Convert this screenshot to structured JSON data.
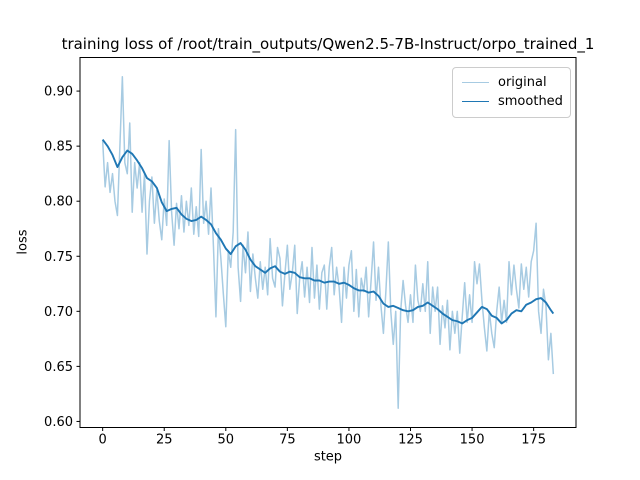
{
  "figure": {
    "background": "#ffffff"
  },
  "chart_data": {
    "type": "line",
    "title": "training loss of /root/train_outputs/Qwen2.5-7B-Instruct/orpo_trained_1",
    "xlabel": "step",
    "ylabel": "loss",
    "xlim": [
      -9.2,
      192.2
    ],
    "ylim": [
      0.5945,
      0.9305
    ],
    "x_ticks": [
      0,
      25,
      50,
      75,
      100,
      125,
      150,
      175
    ],
    "y_ticks": [
      0.6,
      0.65,
      0.7,
      0.75,
      0.8,
      0.85,
      0.9
    ],
    "grid": false,
    "legend_position": "upper right",
    "axis_color": "#000000",
    "series": [
      {
        "name": "original",
        "color": "#a7cbe2",
        "linewidth": 1.5,
        "x": [
          0,
          1,
          2,
          3,
          4,
          5,
          6,
          7,
          8,
          9,
          10,
          11,
          12,
          13,
          14,
          15,
          16,
          17,
          18,
          19,
          20,
          21,
          22,
          23,
          24,
          25,
          26,
          27,
          28,
          29,
          30,
          31,
          32,
          33,
          34,
          35,
          36,
          37,
          38,
          39,
          40,
          41,
          42,
          43,
          44,
          45,
          46,
          47,
          48,
          49,
          50,
          51,
          52,
          53,
          54,
          55,
          56,
          57,
          58,
          59,
          60,
          61,
          62,
          63,
          64,
          65,
          66,
          67,
          68,
          69,
          70,
          71,
          72,
          73,
          74,
          75,
          76,
          77,
          78,
          79,
          80,
          81,
          82,
          83,
          84,
          85,
          86,
          87,
          88,
          89,
          90,
          91,
          92,
          93,
          94,
          95,
          96,
          97,
          98,
          99,
          100,
          101,
          102,
          103,
          104,
          105,
          106,
          107,
          108,
          109,
          110,
          111,
          112,
          113,
          114,
          115,
          116,
          117,
          118,
          119,
          120,
          121,
          122,
          123,
          124,
          125,
          126,
          127,
          128,
          129,
          130,
          131,
          132,
          133,
          134,
          135,
          136,
          137,
          138,
          139,
          140,
          141,
          142,
          143,
          144,
          145,
          146,
          147,
          148,
          149,
          150,
          151,
          152,
          153,
          154,
          155,
          156,
          157,
          158,
          159,
          160,
          161,
          162,
          163,
          164,
          165,
          166,
          167,
          168,
          169,
          170,
          171,
          172,
          173,
          174,
          175,
          176,
          177,
          178,
          179,
          180,
          181,
          182,
          183
        ],
        "y": [
          0.855,
          0.813,
          0.835,
          0.808,
          0.825,
          0.8,
          0.787,
          0.85,
          0.913,
          0.835,
          0.825,
          0.871,
          0.79,
          0.835,
          0.812,
          0.835,
          0.79,
          0.825,
          0.752,
          0.8,
          0.822,
          0.78,
          0.81,
          0.782,
          0.765,
          0.802,
          0.778,
          0.855,
          0.79,
          0.76,
          0.798,
          0.775,
          0.805,
          0.772,
          0.8,
          0.778,
          0.812,
          0.77,
          0.795,
          0.768,
          0.847,
          0.78,
          0.8,
          0.77,
          0.812,
          0.758,
          0.695,
          0.775,
          0.748,
          0.716,
          0.686,
          0.755,
          0.74,
          0.772,
          0.865,
          0.74,
          0.709,
          0.76,
          0.735,
          0.772,
          0.718,
          0.752,
          0.73,
          0.712,
          0.745,
          0.72,
          0.74,
          0.715,
          0.766,
          0.73,
          0.722,
          0.758,
          0.748,
          0.705,
          0.734,
          0.76,
          0.72,
          0.735,
          0.76,
          0.698,
          0.73,
          0.745,
          0.713,
          0.74,
          0.708,
          0.758,
          0.712,
          0.742,
          0.702,
          0.735,
          0.742,
          0.702,
          0.74,
          0.758,
          0.715,
          0.74,
          0.722,
          0.69,
          0.74,
          0.712,
          0.742,
          0.755,
          0.7,
          0.738,
          0.695,
          0.73,
          0.718,
          0.74,
          0.695,
          0.728,
          0.763,
          0.71,
          0.74,
          0.705,
          0.68,
          0.718,
          0.763,
          0.7,
          0.67,
          0.7,
          0.612,
          0.7,
          0.728,
          0.705,
          0.69,
          0.715,
          0.69,
          0.742,
          0.71,
          0.7,
          0.725,
          0.7,
          0.745,
          0.68,
          0.722,
          0.7,
          0.722,
          0.67,
          0.705,
          0.685,
          0.71,
          0.665,
          0.7,
          0.68,
          0.7,
          0.662,
          0.695,
          0.726,
          0.69,
          0.715,
          0.69,
          0.745,
          0.725,
          0.743,
          0.71,
          0.685,
          0.664,
          0.7,
          0.68,
          0.667,
          0.7,
          0.722,
          0.69,
          0.71,
          0.69,
          0.745,
          0.715,
          0.742,
          0.72,
          0.703,
          0.743,
          0.72,
          0.74,
          0.713,
          0.745,
          0.755,
          0.78,
          0.7,
          0.68,
          0.72,
          0.705,
          0.656,
          0.68,
          0.643
        ]
      },
      {
        "name": "smoothed",
        "color": "#1f77b4",
        "linewidth": 1.9,
        "x": [
          0,
          2,
          4,
          6,
          8,
          10,
          12,
          14,
          16,
          18,
          20,
          22,
          24,
          26,
          28,
          30,
          32,
          34,
          36,
          38,
          40,
          42,
          44,
          46,
          48,
          50,
          52,
          54,
          56,
          58,
          60,
          62,
          64,
          66,
          68,
          70,
          72,
          74,
          76,
          78,
          80,
          82,
          84,
          86,
          88,
          90,
          92,
          94,
          96,
          98,
          100,
          102,
          104,
          106,
          108,
          110,
          112,
          114,
          116,
          118,
          120,
          122,
          124,
          126,
          128,
          130,
          132,
          134,
          136,
          138,
          140,
          142,
          144,
          146,
          148,
          150,
          152,
          154,
          156,
          158,
          160,
          162,
          164,
          166,
          168,
          170,
          172,
          174,
          176,
          178,
          180,
          182,
          183
        ],
        "y": [
          0.856,
          0.85,
          0.842,
          0.831,
          0.84,
          0.846,
          0.843,
          0.837,
          0.83,
          0.821,
          0.818,
          0.812,
          0.799,
          0.791,
          0.793,
          0.794,
          0.788,
          0.784,
          0.782,
          0.783,
          0.786,
          0.783,
          0.779,
          0.771,
          0.765,
          0.757,
          0.752,
          0.759,
          0.762,
          0.756,
          0.747,
          0.741,
          0.738,
          0.735,
          0.739,
          0.741,
          0.736,
          0.734,
          0.736,
          0.735,
          0.731,
          0.73,
          0.73,
          0.728,
          0.728,
          0.726,
          0.727,
          0.727,
          0.725,
          0.726,
          0.724,
          0.721,
          0.719,
          0.719,
          0.717,
          0.718,
          0.714,
          0.707,
          0.704,
          0.705,
          0.703,
          0.701,
          0.7,
          0.701,
          0.704,
          0.705,
          0.708,
          0.705,
          0.702,
          0.698,
          0.695,
          0.692,
          0.691,
          0.689,
          0.692,
          0.694,
          0.699,
          0.704,
          0.702,
          0.696,
          0.694,
          0.689,
          0.692,
          0.698,
          0.701,
          0.7,
          0.706,
          0.708,
          0.711,
          0.712,
          0.708,
          0.701,
          0.698
        ]
      }
    ]
  },
  "legend": {
    "items": [
      {
        "label": "original"
      },
      {
        "label": "smoothed"
      }
    ]
  }
}
